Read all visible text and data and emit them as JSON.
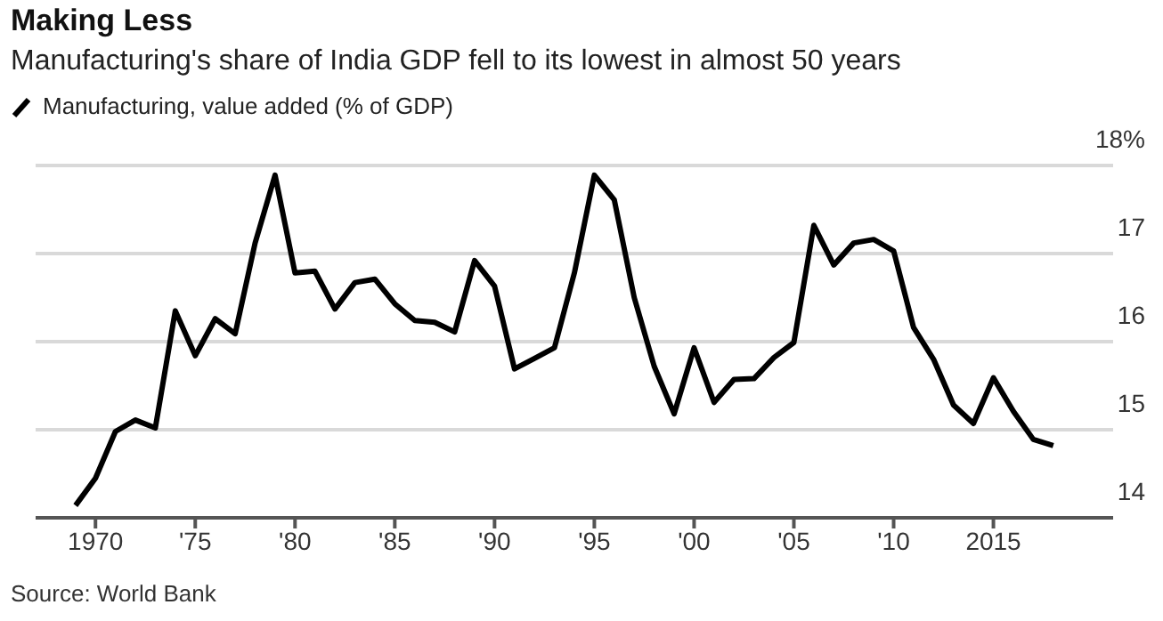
{
  "chart_data": {
    "type": "line",
    "title": "Making Less",
    "subtitle": "Manufacturing's share of India GDP fell to its lowest in almost 50 years",
    "annotations": [
      "Source: World Bank"
    ],
    "x": [
      1969,
      1970,
      1971,
      1972,
      1973,
      1974,
      1975,
      1976,
      1977,
      1978,
      1979,
      1980,
      1981,
      1982,
      1983,
      1984,
      1985,
      1986,
      1987,
      1988,
      1989,
      1990,
      1991,
      1992,
      1993,
      1994,
      1995,
      1996,
      1997,
      1998,
      1999,
      2000,
      2001,
      2002,
      2003,
      2004,
      2005,
      2006,
      2007,
      2008,
      2009,
      2010,
      2011,
      2012,
      2013,
      2014,
      2015,
      2016,
      2017,
      2018
    ],
    "series": [
      {
        "name": "Manufacturing, value added (% of GDP)",
        "color": "#000000",
        "values": [
          14.14,
          14.45,
          14.98,
          15.11,
          15.02,
          16.35,
          15.84,
          16.26,
          16.09,
          17.12,
          17.89,
          16.78,
          16.8,
          16.37,
          16.67,
          16.71,
          16.43,
          16.24,
          16.22,
          16.11,
          16.92,
          16.63,
          15.69,
          15.81,
          15.93,
          16.78,
          17.89,
          17.61,
          16.5,
          15.72,
          15.18,
          15.93,
          15.31,
          15.57,
          15.58,
          15.82,
          15.99,
          17.32,
          16.87,
          17.12,
          17.16,
          17.03,
          16.16,
          15.8,
          15.28,
          15.07,
          15.59,
          15.21,
          14.89,
          14.82
        ]
      }
    ],
    "xlim": [
      1967,
      2021
    ],
    "xticks": [
      {
        "value": 1970,
        "label": "1970"
      },
      {
        "value": 1975,
        "label": "'75"
      },
      {
        "value": 1980,
        "label": "'80"
      },
      {
        "value": 1985,
        "label": "'85"
      },
      {
        "value": 1990,
        "label": "'90"
      },
      {
        "value": 1995,
        "label": "'95"
      },
      {
        "value": 2000,
        "label": "'00"
      },
      {
        "value": 2005,
        "label": "'05"
      },
      {
        "value": 2010,
        "label": "'10"
      },
      {
        "value": 2015,
        "label": "2015"
      }
    ],
    "ylim": [
      14,
      18
    ],
    "yticks": [
      14,
      15,
      16,
      17,
      {
        "value": 18,
        "label": "18%"
      }
    ],
    "grid": "y",
    "legend": "top left",
    "marker": "none",
    "line_style": "solid"
  }
}
